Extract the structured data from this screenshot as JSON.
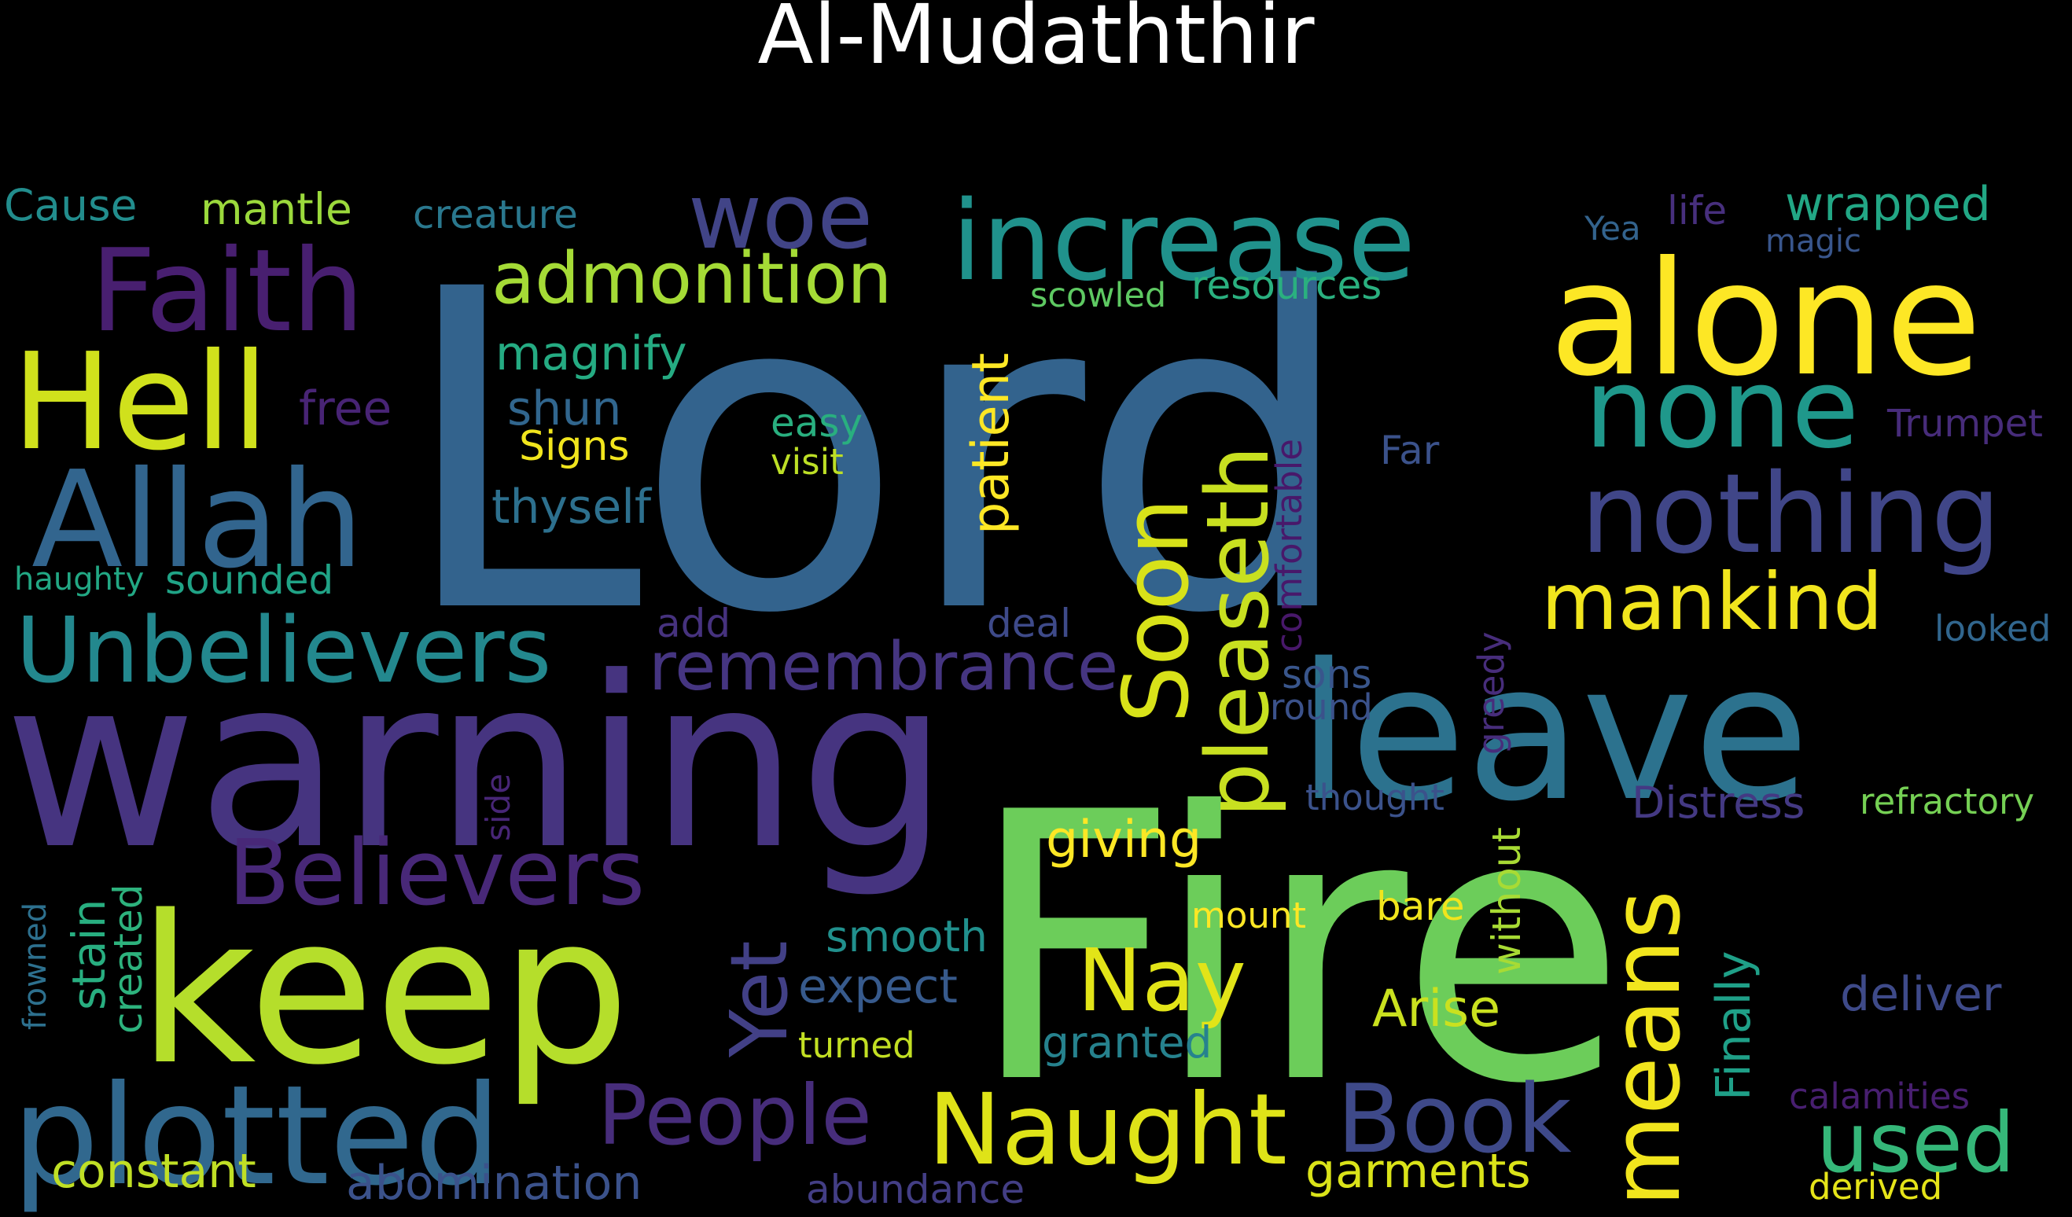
{
  "title": "Al-Mudaththir",
  "words": [
    {
      "text": "Lord",
      "color": "#33638d"
    },
    {
      "text": "Fire",
      "color": "#6ccd5a"
    },
    {
      "text": "warning",
      "color": "#463480"
    },
    {
      "text": "keep",
      "color": "#b5de2b"
    },
    {
      "text": "leave",
      "color": "#2c728e"
    },
    {
      "text": "alone",
      "color": "#fde725"
    },
    {
      "text": "plotted",
      "color": "#31688e"
    },
    {
      "text": "Hell",
      "color": "#d0e11c"
    },
    {
      "text": "Allah",
      "color": "#32658e"
    },
    {
      "text": "Faith",
      "color": "#481f70"
    },
    {
      "text": "increase",
      "color": "#20928c"
    },
    {
      "text": "none",
      "color": "#1f988b"
    },
    {
      "text": "nothing",
      "color": "#404688"
    },
    {
      "text": "Naught",
      "color": "#dfe318"
    },
    {
      "text": "Unbelievers",
      "color": "#23888e"
    },
    {
      "text": "Believers",
      "color": "#482878"
    },
    {
      "text": "woe",
      "color": "#414487"
    },
    {
      "text": "Soon",
      "color": "#d8e219"
    },
    {
      "text": "pleaseth",
      "color": "#c8e020"
    },
    {
      "text": "means",
      "color": "#f1e51d"
    },
    {
      "text": "Book",
      "color": "#3e4989"
    },
    {
      "text": "People",
      "color": "#472d7b"
    },
    {
      "text": "used",
      "color": "#35b779"
    },
    {
      "text": "mankind",
      "color": "#f1e51d"
    },
    {
      "text": "Yet",
      "color": "#424086"
    },
    {
      "text": "admonition",
      "color": "#a5db36"
    },
    {
      "text": "remembrance",
      "color": "#453581"
    },
    {
      "text": "Nay",
      "color": "#e2e418"
    },
    {
      "text": "Cause",
      "color": "#228d8d"
    },
    {
      "text": "mantle",
      "color": "#9bd93c"
    },
    {
      "text": "creature",
      "color": "#2a788e"
    },
    {
      "text": "wrapped",
      "color": "#22a785"
    },
    {
      "text": "life",
      "color": "#472f7d"
    },
    {
      "text": "Yea",
      "color": "#33638d"
    },
    {
      "text": "magic",
      "color": "#39568c"
    },
    {
      "text": "magnify",
      "color": "#25ab82"
    },
    {
      "text": "free",
      "color": "#482475"
    },
    {
      "text": "shun",
      "color": "#31668e"
    },
    {
      "text": "Signs",
      "color": "#f1e51d"
    },
    {
      "text": "easy",
      "color": "#29af7f"
    },
    {
      "text": "visit",
      "color": "#bddf26"
    },
    {
      "text": "thyself",
      "color": "#2d708e"
    },
    {
      "text": "scowled",
      "color": "#5ec962"
    },
    {
      "text": "resources",
      "color": "#2ab07f"
    },
    {
      "text": "patient",
      "color": "#fde725"
    },
    {
      "text": "comfortable",
      "color": "#48186a"
    },
    {
      "text": "Far",
      "color": "#3b528b"
    },
    {
      "text": "Trumpet",
      "color": "#472c7a"
    },
    {
      "text": "haughty",
      "color": "#22a884"
    },
    {
      "text": "sounded",
      "color": "#20a386"
    },
    {
      "text": "add",
      "color": "#46327e"
    },
    {
      "text": "deal",
      "color": "#3e4a89"
    },
    {
      "text": "looked",
      "color": "#31668e"
    },
    {
      "text": "sons",
      "color": "#39568c"
    },
    {
      "text": "round",
      "color": "#3b528b"
    },
    {
      "text": "greedy",
      "color": "#472d7b"
    },
    {
      "text": "side",
      "color": "#482677"
    },
    {
      "text": "thought",
      "color": "#3b528b"
    },
    {
      "text": "Distress",
      "color": "#443983"
    },
    {
      "text": "refractory",
      "color": "#75d054"
    },
    {
      "text": "giving",
      "color": "#fde725"
    },
    {
      "text": "without",
      "color": "#a8db34"
    },
    {
      "text": "stain",
      "color": "#28ae80"
    },
    {
      "text": "created",
      "color": "#2db27d"
    },
    {
      "text": "frowned",
      "color": "#2d708e"
    },
    {
      "text": "smooth",
      "color": "#21908d"
    },
    {
      "text": "mount",
      "color": "#fde725"
    },
    {
      "text": "bare",
      "color": "#f1e51d"
    },
    {
      "text": "Finally",
      "color": "#1fa088"
    },
    {
      "text": "expect",
      "color": "#375a8c"
    },
    {
      "text": "Arise",
      "color": "#cae11f"
    },
    {
      "text": "deliver",
      "color": "#3e4a89"
    },
    {
      "text": "turned",
      "color": "#c2df23"
    },
    {
      "text": "granted",
      "color": "#26828e"
    },
    {
      "text": "constant",
      "color": "#c0df25"
    },
    {
      "text": "abomination",
      "color": "#3b528b"
    },
    {
      "text": "garments",
      "color": "#dae319"
    },
    {
      "text": "abundance",
      "color": "#433e85"
    },
    {
      "text": "calamities",
      "color": "#481f70"
    },
    {
      "text": "derived",
      "color": "#e5e419"
    }
  ]
}
